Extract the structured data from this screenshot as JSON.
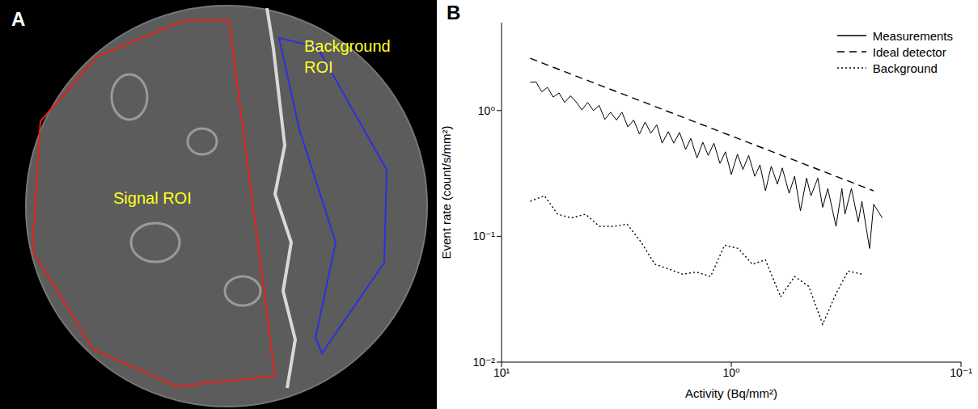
{
  "chart_data": [
    {
      "type": "image",
      "panel": "A",
      "regions": [
        {
          "name": "Signal ROI",
          "color": "#e32219"
        },
        {
          "name": "Background ROI",
          "color": "#2d2fe0"
        }
      ]
    },
    {
      "type": "line",
      "panel": "B",
      "x_label": "Activity (Bq/mm²)",
      "y_label": "Event rate (count/s/mm²)",
      "log": true,
      "legend": "upper right",
      "xlim": [
        10,
        0.1
      ],
      "xticks": [
        {
          "value": 10,
          "label": "10¹"
        },
        {
          "value": 1,
          "label": "10⁰"
        },
        {
          "value": 0.1,
          "label": "10⁻¹"
        }
      ],
      "ylim": [
        0.01,
        5
      ],
      "yticks": [
        {
          "value": 0.01,
          "label": "10⁻²"
        },
        {
          "value": 0.1,
          "label": "10⁻¹"
        },
        {
          "value": 1,
          "label": "10⁰"
        }
      ],
      "series": [
        {
          "name": "Measurements",
          "color": "#000000",
          "line_style": "solid",
          "x": [
            7.5,
            7.08,
            6.68,
            6.31,
            5.96,
            5.62,
            5.31,
            5.01,
            4.73,
            4.47,
            4.22,
            3.98,
            3.76,
            3.55,
            3.35,
            3.16,
            2.99,
            2.82,
            2.66,
            2.51,
            2.37,
            2.24,
            2.11,
            2.0,
            1.88,
            1.78,
            1.68,
            1.58,
            1.5,
            1.41,
            1.33,
            1.26,
            1.19,
            1.12,
            1.06,
            1.0,
            0.94,
            0.89,
            0.84,
            0.79,
            0.75,
            0.71,
            0.67,
            0.63,
            0.6,
            0.56,
            0.53,
            0.5,
            0.47,
            0.45,
            0.42,
            0.4,
            0.38,
            0.35,
            0.33,
            0.32,
            0.3,
            0.28,
            0.27,
            0.25,
            0.24,
            0.22
          ],
          "values": [
            1.68,
            1.69,
            1.41,
            1.53,
            1.28,
            1.38,
            1.16,
            1.31,
            1.17,
            1.01,
            1.16,
            1.0,
            1.1,
            0.85,
            0.97,
            0.84,
            0.97,
            0.74,
            0.84,
            0.65,
            0.81,
            0.66,
            0.77,
            0.55,
            0.68,
            0.55,
            0.67,
            0.49,
            0.6,
            0.42,
            0.56,
            0.44,
            0.55,
            0.38,
            0.47,
            0.31,
            0.45,
            0.34,
            0.44,
            0.3,
            0.37,
            0.23,
            0.36,
            0.26,
            0.35,
            0.22,
            0.3,
            0.16,
            0.29,
            0.21,
            0.29,
            0.17,
            0.24,
            0.12,
            0.24,
            0.15,
            0.24,
            0.13,
            0.19,
            0.08,
            0.18,
            0.14
          ]
        },
        {
          "name": "Ideal detector",
          "color": "#000000",
          "line_style": "dashed",
          "x": [
            7.5,
            0.24
          ],
          "values": [
            2.6,
            0.23
          ]
        },
        {
          "name": "Background",
          "color": "#000000",
          "line_style": "dotted",
          "x": [
            7.5,
            6.5,
            5.7,
            4.96,
            4.31,
            3.75,
            3.26,
            2.84,
            2.47,
            2.15,
            1.87,
            1.63,
            1.42,
            1.23,
            1.07,
            0.93,
            0.81,
            0.71,
            0.61,
            0.53,
            0.46,
            0.4,
            0.35,
            0.31,
            0.27
          ],
          "values": [
            0.19,
            0.21,
            0.15,
            0.14,
            0.15,
            0.12,
            0.12,
            0.125,
            0.09,
            0.06,
            0.055,
            0.05,
            0.052,
            0.048,
            0.085,
            0.08,
            0.06,
            0.065,
            0.033,
            0.048,
            0.04,
            0.02,
            0.035,
            0.053,
            0.05
          ]
        }
      ]
    }
  ]
}
